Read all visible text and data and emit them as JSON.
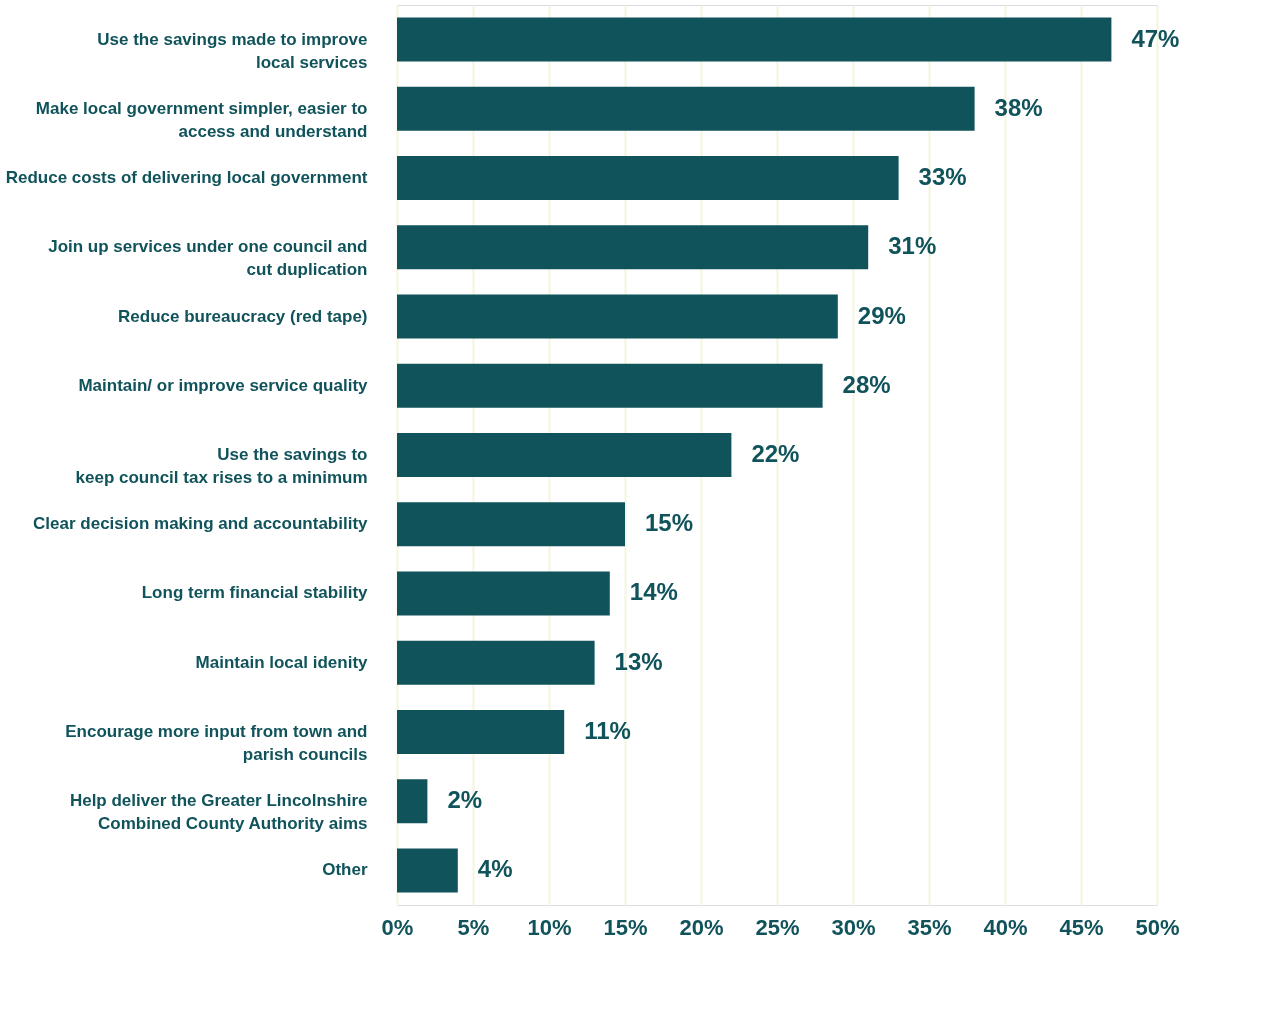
{
  "chart_data": {
    "type": "bar",
    "orientation": "horizontal",
    "categories": [
      "Use the savings made to improve\nlocal services",
      "Make local government simpler, easier to\naccess and understand",
      "Reduce costs of delivering local government",
      "Join up services under one council and\ncut duplication",
      "Reduce bureaucracy (red tape)",
      "Maintain/ or improve service quality",
      "Use the savings to\nkeep council tax rises to a minimum",
      "Clear decision making and accountability",
      "Long term financial stability",
      "Maintain local idenity",
      "Encourage more input from town and\nparish councils",
      "Help deliver the Greater Lincolnshire\nCombined County Authority aims",
      "Other"
    ],
    "values": [
      47,
      38,
      33,
      31,
      29,
      28,
      22,
      15,
      14,
      13,
      11,
      2,
      4
    ],
    "value_labels": [
      "47%",
      "38%",
      "33%",
      "31%",
      "29%",
      "28%",
      "22%",
      "15%",
      "14%",
      "13%",
      "11%",
      "2%",
      "4%"
    ],
    "color": "#10535b",
    "xlim": [
      0,
      50
    ],
    "xticks": [
      {
        "value": 0,
        "label": "0%"
      },
      {
        "value": 5,
        "label": "5%"
      },
      {
        "value": 10,
        "label": "10%"
      },
      {
        "value": 15,
        "label": "15%"
      },
      {
        "value": 20,
        "label": "20%"
      },
      {
        "value": 25,
        "label": "25%"
      },
      {
        "value": 30,
        "label": "30%"
      },
      {
        "value": 35,
        "label": "35%"
      },
      {
        "value": 40,
        "label": "40%"
      },
      {
        "value": 45,
        "label": "45%"
      },
      {
        "value": 50,
        "label": "50%"
      }
    ],
    "grid": "x"
  }
}
